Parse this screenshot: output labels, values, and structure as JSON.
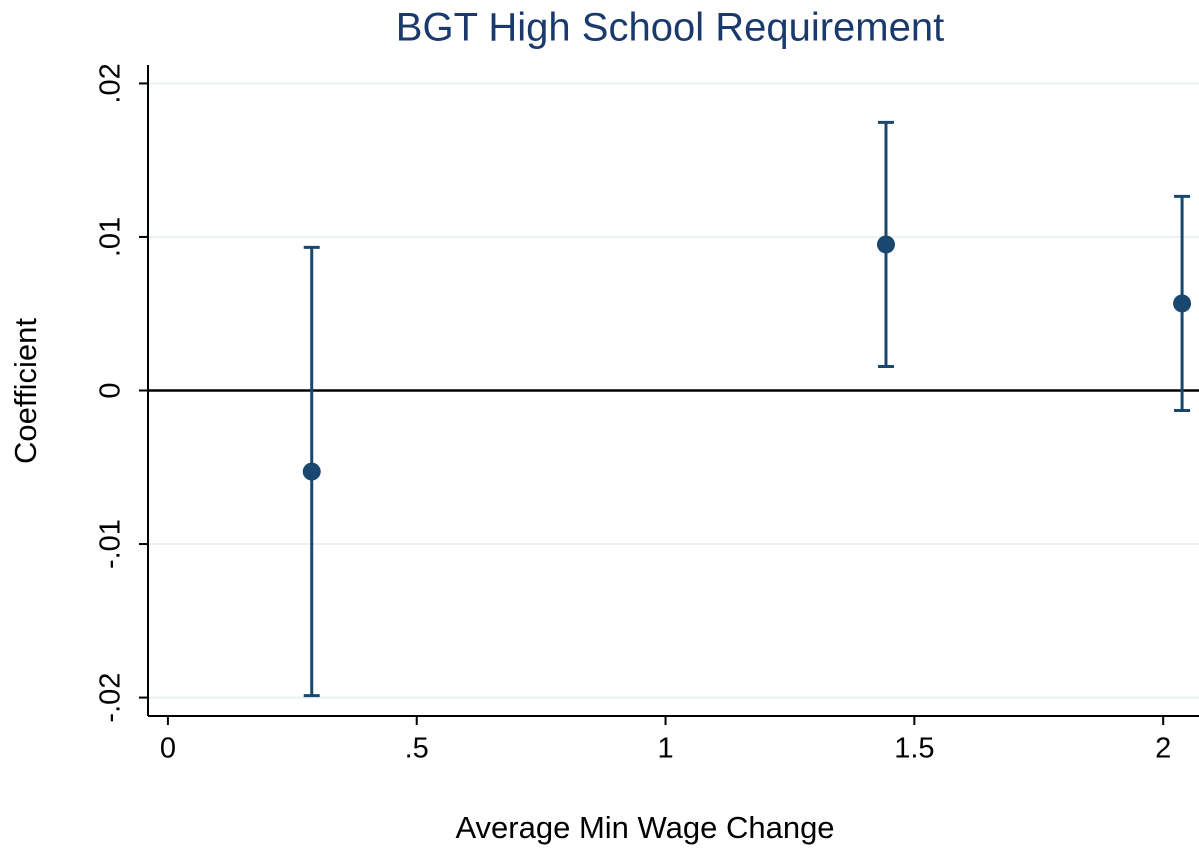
{
  "chart_data": {
    "type": "errorbar",
    "title": "BGT High School Requirement",
    "x_label": "Average Min Wage Change",
    "y_label": "Coefficient",
    "series": [
      {
        "color": "#1a476f",
        "x": [
          0.289,
          1.443,
          2.038
        ],
        "values": [
          -0.00528,
          0.00951,
          0.00567
        ],
        "ci_low": [
          -0.01987,
          0.00156,
          -0.0013
        ],
        "ci_high": [
          0.00932,
          0.01746,
          0.01264
        ]
      }
    ],
    "xlim": [
      -0.04,
      2.072
    ],
    "ylim": [
      -0.0212,
      0.0212
    ],
    "xticks": [
      0,
      {
        "value": 0.5,
        "label": ".5"
      },
      1,
      1.5,
      2
    ],
    "yticks": [
      {
        "value": -0.02,
        "label": "-.02"
      },
      {
        "value": -0.01,
        "label": "-.01"
      },
      0,
      {
        "value": 0.01,
        "label": ".01"
      },
      {
        "value": 0.02,
        "label": ".02"
      }
    ],
    "grid": true,
    "hline": 0
  }
}
